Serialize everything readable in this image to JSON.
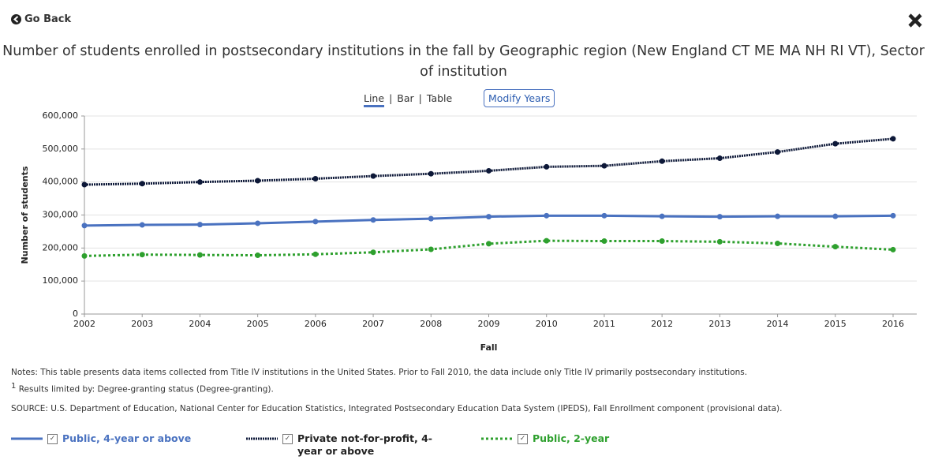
{
  "header": {
    "back": "Go Back"
  },
  "tabs": [
    "Line",
    "Bar",
    "Table"
  ],
  "modify_button": "Modify Years",
  "chart_data": {
    "type": "line",
    "title": "Number of students enrolled in postsecondary institutions in the fall by Geographic region (New England CT ME MA NH RI VT), Sector of institution",
    "x_label": "Fall",
    "y_label": "Number of students",
    "categories": [
      "2002",
      "2003",
      "2004",
      "2005",
      "2006",
      "2007",
      "2008",
      "2009",
      "2010",
      "2011",
      "2012",
      "2013",
      "2014",
      "2015",
      "2016"
    ],
    "ylim": [
      0,
      600000
    ],
    "yticks": [
      0,
      {
        "value": 100000,
        "label": "100,000"
      },
      {
        "value": 200000,
        "label": "200,000"
      },
      {
        "value": 300000,
        "label": "300,000"
      },
      {
        "value": 400000,
        "label": "400,000"
      },
      {
        "value": 500000,
        "label": "500,000"
      },
      {
        "value": 600000,
        "label": "600,000"
      }
    ],
    "grid": true,
    "series": [
      {
        "name": "Public, 4-year or above",
        "color": "#4a72c0",
        "style": "solid",
        "values": [
          268000,
          270000,
          271000,
          275000,
          280000,
          285000,
          289000,
          295000,
          298000,
          298000,
          296000,
          295000,
          296000,
          296000,
          298000
        ]
      },
      {
        "name": "Private not-for-profit, 4-year or above",
        "color": "#0d1838",
        "style": "dense-dotted",
        "values": [
          392000,
          395000,
          400000,
          404000,
          410000,
          418000,
          425000,
          434000,
          446000,
          449000,
          463000,
          472000,
          491000,
          516000,
          531000
        ]
      },
      {
        "name": "Public, 2-year",
        "color": "#2ea02e",
        "style": "dotted",
        "values": [
          176000,
          180000,
          179000,
          178000,
          181000,
          187000,
          196000,
          213000,
          222000,
          221000,
          221000,
          219000,
          214000,
          204000,
          195000
        ]
      }
    ]
  },
  "notes": {
    "note": "Notes: This table presents data items collected from Title IV institutions in the United States. Prior to Fall 2010, the data include only Title IV primarily postsecondary institutions.",
    "footnote_mark": "1",
    "footnote": "Results limited by: Degree-granting status (Degree-granting).",
    "source": "SOURCE: U.S. Department of Education, National Center for Education Statistics, Integrated Postsecondary Education Data System (IPEDS), Fall Enrollment component (provisional data)."
  }
}
